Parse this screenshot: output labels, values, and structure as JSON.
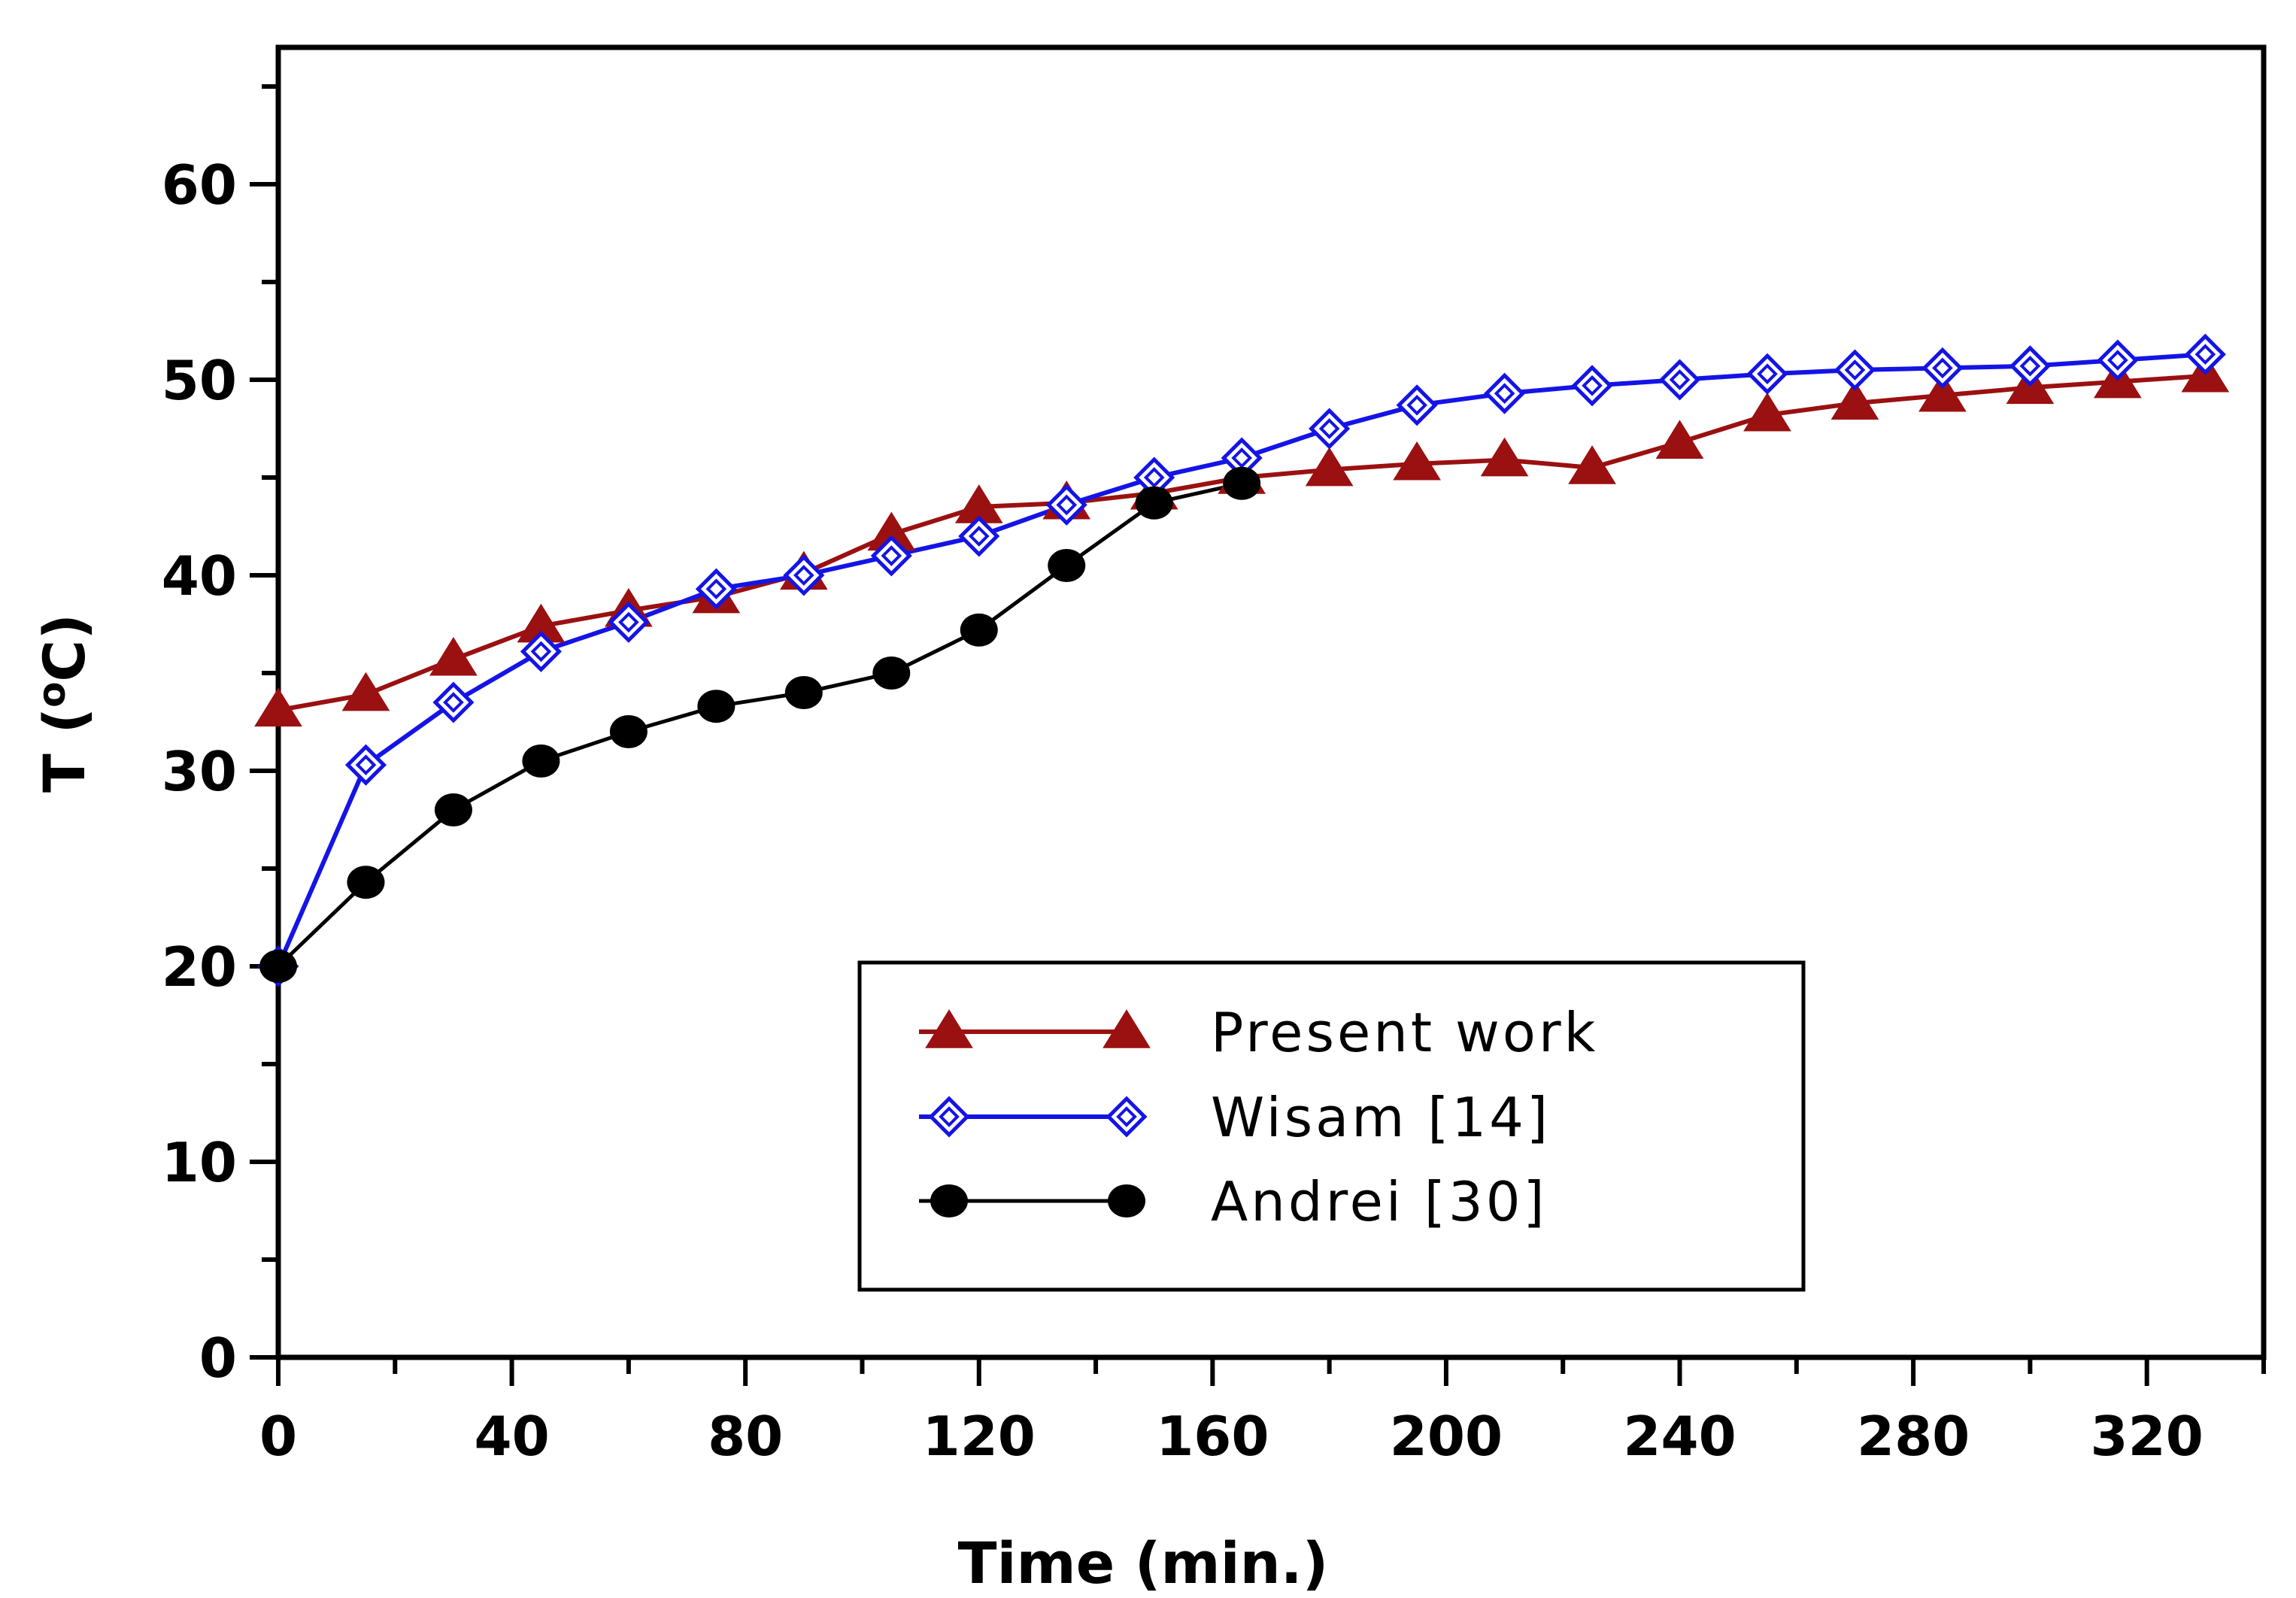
{
  "chart_data": {
    "type": "line",
    "title": "",
    "xlabel": "Time (min.)",
    "ylabel_main": "T (",
    "ylabel_sup": "o",
    "ylabel_end": "C)",
    "xlim": [
      0,
      340
    ],
    "ylim": [
      0,
      67
    ],
    "xticks": [
      0,
      40,
      80,
      120,
      160,
      200,
      240,
      280,
      320
    ],
    "xtick_labels": [
      "0",
      "40",
      "80",
      "120",
      "160",
      "200",
      "240",
      "280",
      "320"
    ],
    "xminor_step": 20,
    "yticks": [
      0,
      10,
      20,
      30,
      40,
      50,
      60
    ],
    "ytick_labels": [
      "0",
      "10",
      "20",
      "30",
      "40",
      "50",
      "60"
    ],
    "yminor_step": 5,
    "grid": false,
    "legend_position": "bottom-center",
    "series": [
      {
        "name": "Present work",
        "color": "#9b1010",
        "marker": "triangle",
        "x": [
          0,
          15,
          30,
          45,
          60,
          75,
          90,
          105,
          120,
          135,
          150,
          165,
          180,
          195,
          210,
          225,
          240,
          255,
          270,
          285,
          300,
          315,
          330
        ],
        "y": [
          33.1,
          33.9,
          35.7,
          37.4,
          38.2,
          38.9,
          40.1,
          42.1,
          43.5,
          43.7,
          44.2,
          45.0,
          45.4,
          45.7,
          45.9,
          45.5,
          46.8,
          48.2,
          48.8,
          49.2,
          49.6,
          49.9,
          50.2
        ]
      },
      {
        "name": "Wisam [14]",
        "color": "#1414e6",
        "marker": "diamond",
        "x": [
          0,
          15,
          30,
          45,
          60,
          75,
          90,
          105,
          120,
          135,
          150,
          165,
          180,
          195,
          210,
          225,
          240,
          255,
          270,
          285,
          300,
          315,
          330
        ],
        "y": [
          20.0,
          30.3,
          33.5,
          36.1,
          37.6,
          39.3,
          40.0,
          41.0,
          42.0,
          43.6,
          45.0,
          46.0,
          47.5,
          48.7,
          49.3,
          49.7,
          50.0,
          50.3,
          50.5,
          50.6,
          50.7,
          51.0,
          51.3
        ]
      },
      {
        "name": "Andrei [30]",
        "color": "#000000",
        "marker": "circle",
        "x": [
          0,
          15,
          30,
          45,
          60,
          75,
          90,
          105,
          120,
          135,
          150,
          165
        ],
        "y": [
          20.0,
          24.3,
          28.0,
          30.5,
          32.0,
          33.3,
          34.0,
          35.0,
          37.2,
          40.5,
          43.7,
          44.7
        ]
      }
    ]
  }
}
